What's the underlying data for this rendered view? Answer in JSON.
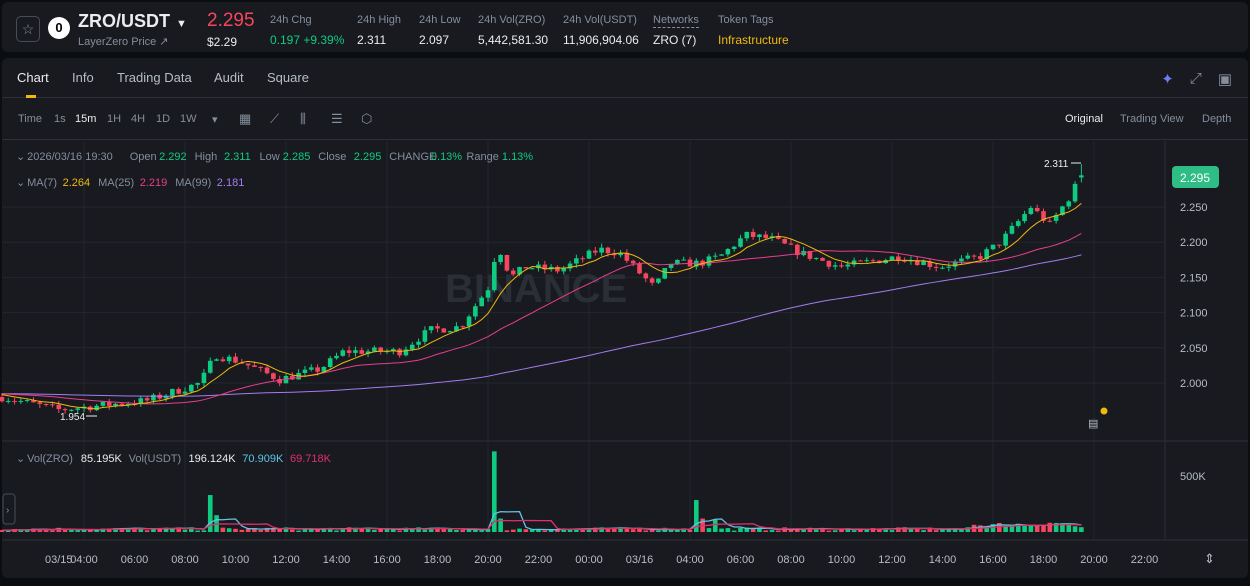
{
  "header": {
    "symbol": "ZRO/USDT",
    "subtitle": "LayerZero Price ↗",
    "price": "2.295",
    "price_usd": "$2.29",
    "stats": [
      {
        "label": "24h Chg",
        "value": "0.197 +9.39%",
        "color": "#0ecb81"
      },
      {
        "label": "24h High",
        "value": "2.311"
      },
      {
        "label": "24h Low",
        "value": "2.097"
      },
      {
        "label": "24h Vol(ZRO)",
        "value": "5,442,581.30"
      },
      {
        "label": "24h Vol(USDT)",
        "value": "11,906,904.06"
      },
      {
        "label": "Networks",
        "value": "ZRO (7)"
      },
      {
        "label": "Token Tags",
        "value": "Infrastructure",
        "color": "#f0b90b"
      }
    ]
  },
  "tabs": [
    "Chart",
    "Info",
    "Trading Data",
    "Audit",
    "Square"
  ],
  "intervals": [
    "Time",
    "1s",
    "15m",
    "1H",
    "4H",
    "1D",
    "1W"
  ],
  "views": [
    "Original",
    "Trading View",
    "Depth"
  ],
  "ohlc": {
    "date": "2026/03/16 19:30",
    "open_l": "Open",
    "open": "2.292",
    "high_l": "High",
    "high": "2.311",
    "low_l": "Low",
    "low": "2.285",
    "close_l": "Close",
    "close": "2.295",
    "change_l": "CHANGE",
    "change": "0.13%",
    "range_l": "Range",
    "range": "1.13%"
  },
  "ma": {
    "ma7_l": "MA(7)",
    "ma7": "2.264",
    "ma25_l": "MA(25)",
    "ma25": "2.219",
    "ma99_l": "MA(99)",
    "ma99": "2.181"
  },
  "vol": {
    "zro_l": "Vol(ZRO)",
    "zro": "85.195K",
    "usdt_l": "Vol(USDT)",
    "usdt": "196.124K",
    "ma5": "70.909K",
    "ma10": "69.718K"
  },
  "watermark": "BINANCE",
  "colors": {
    "up": "#0ecb81",
    "down": "#f6465d",
    "ma7": "#f0b90b",
    "ma25": "#e83e8c",
    "ma99": "#a57cf0",
    "vma5": "#5ec4e6",
    "vma10": "#e0306a"
  },
  "chart_data": {
    "type": "candlestick",
    "interval": "15m",
    "price_ticks": [
      "2.000",
      "2.050",
      "2.100",
      "2.150",
      "2.200",
      "2.250"
    ],
    "price_tick_values": [
      2.0,
      2.05,
      2.1,
      2.15,
      2.2,
      2.25
    ],
    "current_price": "2.295",
    "high_marker": "2.311",
    "low_marker": "1.954",
    "vol_tick": "500K",
    "time_ticks": [
      {
        "h": 3,
        "l": "03/15"
      },
      {
        "h": 4,
        "l": "04:00"
      },
      {
        "h": 6,
        "l": "06:00"
      },
      {
        "h": 8,
        "l": "08:00"
      },
      {
        "h": 10,
        "l": "10:00"
      },
      {
        "h": 12,
        "l": "12:00"
      },
      {
        "h": 14,
        "l": "14:00"
      },
      {
        "h": 16,
        "l": "16:00"
      },
      {
        "h": 18,
        "l": "18:00"
      },
      {
        "h": 20,
        "l": "20:00"
      },
      {
        "h": 22,
        "l": "22:00"
      },
      {
        "h": 24,
        "l": "00:00"
      },
      {
        "h": 26,
        "l": "03/16"
      },
      {
        "h": 28,
        "l": "04:00"
      },
      {
        "h": 30,
        "l": "06:00"
      },
      {
        "h": 32,
        "l": "08:00"
      },
      {
        "h": 34,
        "l": "10:00"
      },
      {
        "h": 36,
        "l": "12:00"
      },
      {
        "h": 38,
        "l": "14:00"
      },
      {
        "h": 40,
        "l": "16:00"
      },
      {
        "h": 42,
        "l": "18:00"
      },
      {
        "h": 44,
        "l": "20:00"
      },
      {
        "h": 46,
        "l": "22:00"
      }
    ],
    "close_anchors_hours_price": [
      [
        0.75,
        1.98
      ],
      [
        3,
        1.962
      ],
      [
        6.5,
        1.975
      ],
      [
        8.6,
        2.0
      ],
      [
        9.2,
        2.04
      ],
      [
        10.2,
        2.03
      ],
      [
        11.75,
        2.005
      ],
      [
        13.35,
        2.02
      ],
      [
        14.3,
        2.045
      ],
      [
        16.5,
        2.045
      ],
      [
        17.7,
        2.075
      ],
      [
        18.9,
        2.08
      ],
      [
        20.1,
        2.14
      ],
      [
        20.35,
        2.2
      ],
      [
        20.9,
        2.15
      ],
      [
        21.5,
        2.165
      ],
      [
        22.85,
        2.16
      ],
      [
        24.4,
        2.19
      ],
      [
        25.2,
        2.185
      ],
      [
        26.6,
        2.135
      ],
      [
        27.2,
        2.17
      ],
      [
        28.4,
        2.17
      ],
      [
        29.2,
        2.18
      ],
      [
        30.2,
        2.21
      ],
      [
        31.2,
        2.205
      ],
      [
        32.35,
        2.185
      ],
      [
        33.95,
        2.165
      ],
      [
        36.3,
        2.18
      ],
      [
        37.9,
        2.165
      ],
      [
        39.5,
        2.18
      ],
      [
        40.3,
        2.2
      ],
      [
        41.5,
        2.25
      ],
      [
        42.25,
        2.225
      ],
      [
        43.05,
        2.265
      ],
      [
        43.5,
        2.295
      ]
    ],
    "volume_spikes_hours_k": [
      [
        9.0,
        330
      ],
      [
        9.25,
        150
      ],
      [
        20.25,
        720
      ],
      [
        20.5,
        120
      ],
      [
        28.25,
        285
      ],
      [
        28.5,
        120
      ],
      [
        29.0,
        110
      ]
    ]
  }
}
